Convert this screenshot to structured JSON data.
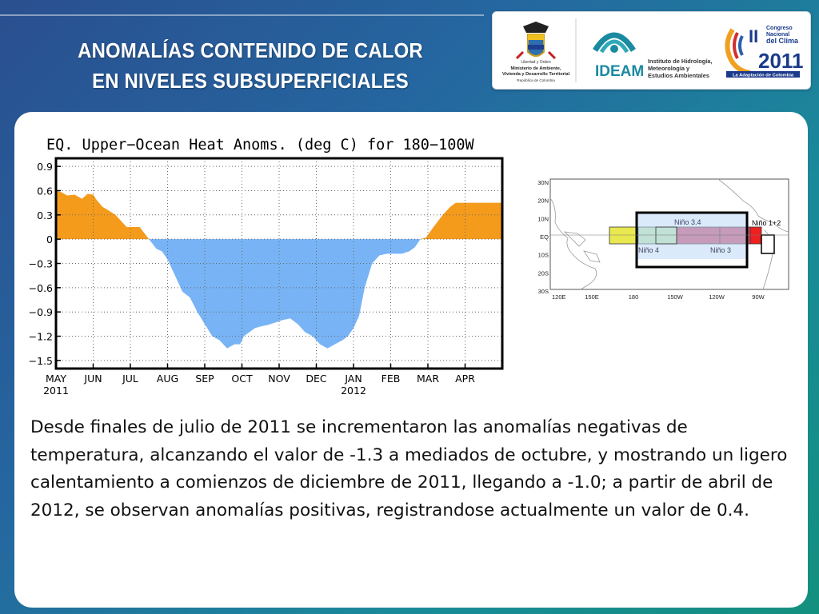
{
  "slide": {
    "title_line1": "ANOMALÍAS CONTENIDO DE CALOR",
    "title_line2": "EN NIVELES SUBSUPERFICIALES",
    "paragraph": "Desde finales de julio de 2011 se incrementaron las anomalías negativas de temperatura, alcanzando el valor de -1.3 a mediados de octubre, y mostrando un ligero calentamiento a comienzos de diciembre de 2011, llegando a -1.0; a partir de abril de 2012, se observan anomalías positivas, registrandose actualmente un valor de 0.4."
  },
  "logos": {
    "ministry_lines": [
      "Libertad y Orden",
      "Ministerio de Ambiente,",
      "Vivienda y Desarrollo Territorial",
      "República de Colombia"
    ],
    "ideam_name": "IDEAM",
    "ideam_lines": [
      "Instituto de Hidrología,",
      "Meteorología y",
      "Estudios Ambientales"
    ],
    "congress_roman": "II",
    "congress_lines": [
      "Congreso",
      "Nacional",
      "del Clima"
    ],
    "congress_year": "2011",
    "congress_tagline": "La Adaptación de Colombia",
    "colors": {
      "ideam_teal": "#1a8aa0",
      "congress_blue": "#1a3a8a",
      "congress_orange": "#f0a020"
    }
  },
  "chart_data": [
    {
      "type": "area",
      "title": "EQ. Upper−Ocean Heat Anoms. (deg C) for 180−100W",
      "xlabel": "",
      "ylabel": "",
      "ylim": [
        -1.6,
        1.0
      ],
      "yticks": [
        0.9,
        0.6,
        0.3,
        0,
        -0.3,
        -0.6,
        -0.9,
        -1.2,
        -1.5
      ],
      "ytick_labels": [
        "0.9",
        "0.6",
        "0.3",
        "0",
        "−0.3",
        "−0.6",
        "−0.9",
        "−1.2",
        "−1.5"
      ],
      "xlim": [
        0,
        12
      ],
      "xticks": [
        {
          "pos": 0,
          "label": "MAY",
          "sub": "2011"
        },
        {
          "pos": 1,
          "label": "JUN",
          "sub": ""
        },
        {
          "pos": 2,
          "label": "JUL",
          "sub": ""
        },
        {
          "pos": 3,
          "label": "AUG",
          "sub": ""
        },
        {
          "pos": 4,
          "label": "SEP",
          "sub": ""
        },
        {
          "pos": 5,
          "label": "OCT",
          "sub": ""
        },
        {
          "pos": 6,
          "label": "NOV",
          "sub": ""
        },
        {
          "pos": 7,
          "label": "DEC",
          "sub": ""
        },
        {
          "pos": 8,
          "label": "JAN",
          "sub": "2012"
        },
        {
          "pos": 9,
          "label": "FEB",
          "sub": ""
        },
        {
          "pos": 10,
          "label": "MAR",
          "sub": ""
        },
        {
          "pos": 11,
          "label": "APR",
          "sub": ""
        }
      ],
      "positive_color": "#f59b1c",
      "negative_color": "#78b4f5",
      "x": [
        0.0,
        0.15,
        0.3,
        0.5,
        0.7,
        0.85,
        1.0,
        1.1,
        1.25,
        1.4,
        1.6,
        1.8,
        1.9,
        2.05,
        2.25,
        2.5,
        2.7,
        2.85,
        3.0,
        3.2,
        3.4,
        3.6,
        3.8,
        4.0,
        4.2,
        4.4,
        4.6,
        4.8,
        4.95,
        5.05,
        5.2,
        5.35,
        5.5,
        5.7,
        5.9,
        6.1,
        6.3,
        6.5,
        6.7,
        6.9,
        7.0,
        7.1,
        7.3,
        7.5,
        7.7,
        7.85,
        8.0,
        8.15,
        8.3,
        8.5,
        8.7,
        8.9,
        9.1,
        9.3,
        9.5,
        9.65,
        9.8,
        9.95,
        10.15,
        10.4,
        10.6,
        10.75,
        10.9,
        11.0,
        11.15,
        11.3,
        11.5,
        11.65,
        11.8
      ],
      "values": [
        0.6,
        0.58,
        0.54,
        0.55,
        0.5,
        0.56,
        0.55,
        0.48,
        0.4,
        0.36,
        0.3,
        0.2,
        0.15,
        0.15,
        0.15,
        0.0,
        -0.12,
        -0.15,
        -0.25,
        -0.45,
        -0.65,
        -0.72,
        -0.9,
        -1.05,
        -1.2,
        -1.25,
        -1.35,
        -1.3,
        -1.3,
        -1.2,
        -1.15,
        -1.1,
        -1.08,
        -1.06,
        -1.03,
        -1.0,
        -0.98,
        -1.05,
        -1.15,
        -1.2,
        -1.25,
        -1.3,
        -1.35,
        -1.3,
        -1.25,
        -1.2,
        -1.1,
        -0.95,
        -0.6,
        -0.3,
        -0.2,
        -0.18,
        -0.18,
        -0.18,
        -0.15,
        -0.1,
        0.0,
        0.02,
        0.15,
        0.3,
        0.4,
        0.45,
        0.45,
        0.45,
        0.45,
        0.45,
        0.45,
        0.45,
        0.45
      ],
      "grid": "dotted",
      "legend": "none"
    }
  ],
  "map": {
    "lat_labels": [
      "30N",
      "20N",
      "10N",
      "EQ",
      "10S",
      "20S",
      "30S"
    ],
    "lon_labels": [
      "120E",
      "150E",
      "180",
      "150W",
      "120W",
      "90W"
    ],
    "regions": [
      {
        "name": "Niño 4",
        "color": "#e8e850",
        "label": "Niño 4"
      },
      {
        "name": "Niño 3.4",
        "color": "#c8e0f5",
        "label": "Niño 3.4"
      },
      {
        "name": "Niño 3",
        "color": "#d05070",
        "label": "Niño 3"
      },
      {
        "name": "Niño 1+2",
        "color": "#ee2020",
        "label": "Niño 1+2"
      }
    ]
  }
}
